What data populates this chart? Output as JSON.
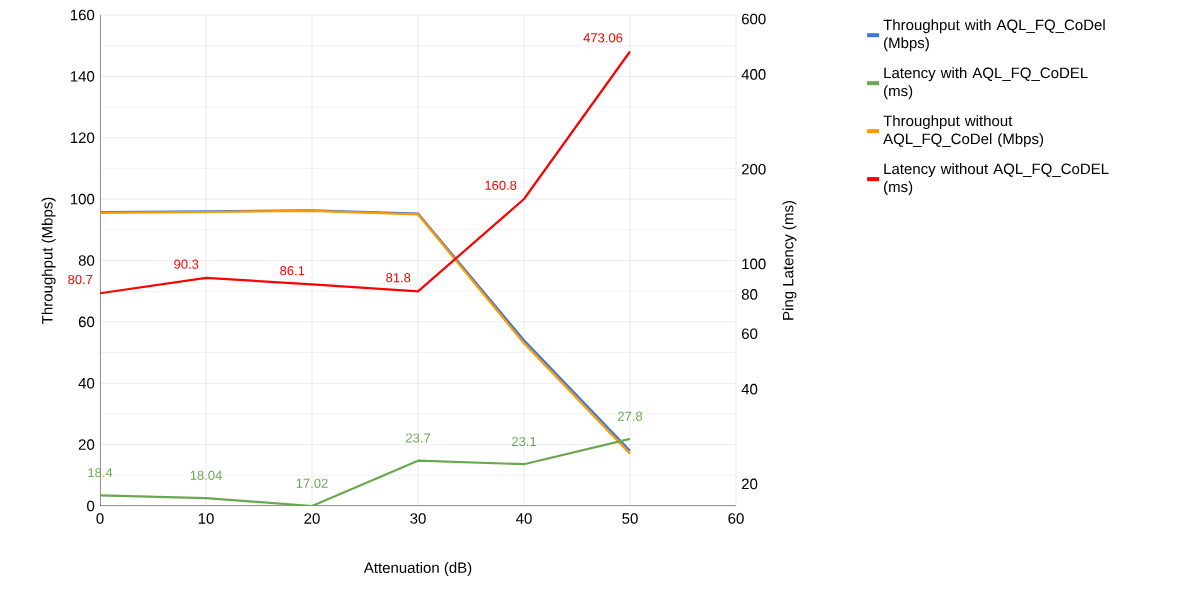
{
  "chart_data": {
    "type": "line",
    "xlabel": "Attenuation (dB)",
    "ylabel": "Throughput (Mbps)",
    "y2label": "Ping Latency (ms)",
    "x": [
      0,
      10,
      20,
      30,
      40,
      50
    ],
    "xlim": [
      0,
      60
    ],
    "xticks": [
      0,
      10,
      20,
      30,
      40,
      50,
      60
    ],
    "ylim": [
      0,
      160
    ],
    "yticks": [
      0,
      20,
      40,
      60,
      80,
      100,
      120,
      140,
      160
    ],
    "y2lim": [
      17.02,
      618
    ],
    "y2ticks": [
      20,
      40,
      60,
      80,
      100,
      200,
      400,
      600
    ],
    "log": "y2",
    "grid": true,
    "legend": "right",
    "marker": "none",
    "line_style": "solid",
    "series": [
      {
        "name": "Throughput with AQL_FQ_CoDel (Mbps)",
        "color": "#3c78d8",
        "values": [
          95.8,
          96,
          96.3,
          95.3,
          54,
          18
        ]
      },
      {
        "name": "Latency with AQL_FQ_CoDEL (ms)",
        "color": "#6aa84f",
        "axis": "y2",
        "values": [
          18.4,
          18.04,
          17.02,
          23.7,
          23.1,
          27.8
        ],
        "value_labels": [
          "18.4",
          "18.04",
          "17.02",
          "23.7",
          "23.1",
          "27.8"
        ]
      },
      {
        "name": "Throughput without AQL_FQ_CoDel (Mbps)",
        "color": "#ff9900",
        "values": [
          95.5,
          95.8,
          96.2,
          95,
          53,
          17
        ]
      },
      {
        "name": "Latency without AQL_FQ_CoDEL (ms)",
        "color": "#ff0000",
        "axis": "y2",
        "values": [
          80.7,
          90.3,
          86.1,
          81.8,
          160.8,
          473.06
        ],
        "value_labels": [
          "80.7",
          "90.3",
          "86.1",
          "81.8",
          "160.8",
          "473.06"
        ]
      }
    ]
  }
}
